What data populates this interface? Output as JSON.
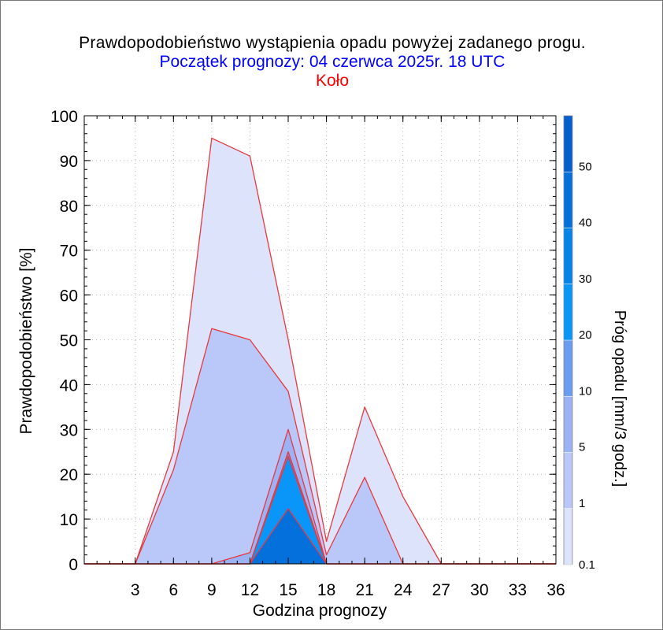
{
  "chart_data": {
    "type": "area",
    "title": "Prawdopodobieństwo wystąpienia opadu powyżej zadanego progu.",
    "subtitle": "Początek prognozy: 04 czerwca 2025r. 18 UTC",
    "station": "Koło",
    "xlabel": "Godzina prognozy",
    "ylabel": "Prawdopodobieństwo [%]",
    "colorbar_label": "Próg opadu [mm/3 godz.]",
    "xlim": [
      -1,
      36
    ],
    "ylim": [
      0,
      100
    ],
    "x_ticks": [
      3,
      6,
      9,
      12,
      15,
      18,
      21,
      24,
      27,
      30,
      33,
      36
    ],
    "y_ticks": [
      0,
      10,
      20,
      30,
      40,
      50,
      60,
      70,
      80,
      90,
      100
    ],
    "grid": true,
    "x": [
      -1,
      3,
      6,
      9,
      12,
      15,
      18,
      21,
      24,
      27,
      30,
      33,
      36
    ],
    "series": [
      {
        "name": "0.1",
        "color": "#dde3fb",
        "values": [
          0,
          0,
          25,
          95,
          91,
          50,
          5,
          35,
          15,
          0,
          0,
          0,
          0
        ]
      },
      {
        "name": "1",
        "color": "#b9c8f8",
        "values": [
          0,
          0,
          21,
          52.5,
          50,
          38.5,
          2,
          19.3,
          0,
          0,
          0,
          0,
          0
        ]
      },
      {
        "name": "5",
        "color": "#9bb2f4",
        "values": [
          0,
          0,
          0,
          0,
          2.5,
          30,
          0,
          0,
          0,
          0,
          0,
          0,
          0
        ]
      },
      {
        "name": "10",
        "color": "#6a9cf0",
        "values": [
          0,
          0,
          0,
          0,
          0,
          25,
          0,
          0,
          0,
          0,
          0,
          0,
          0
        ]
      },
      {
        "name": "20",
        "color": "#0a96f8",
        "values": [
          0,
          0,
          0,
          0,
          0,
          24,
          0,
          0,
          0,
          0,
          0,
          0,
          0
        ]
      },
      {
        "name": "30",
        "color": "#0470dc",
        "values": [
          0,
          0,
          0,
          0,
          0,
          12.3,
          0,
          0,
          0,
          0,
          0,
          0,
          0
        ]
      }
    ],
    "colorbar": {
      "tick_labels": [
        "0.1",
        "1",
        "5",
        "10",
        "20",
        "30",
        "40",
        "50"
      ],
      "colors": [
        "#dde3fb",
        "#b9c8f8",
        "#9bb2f4",
        "#6a9cf0",
        "#0a96f8",
        "#0484e8",
        "#0470dc",
        "#0360cc",
        "#0652c4"
      ]
    },
    "outline_color": "#e8383e"
  }
}
